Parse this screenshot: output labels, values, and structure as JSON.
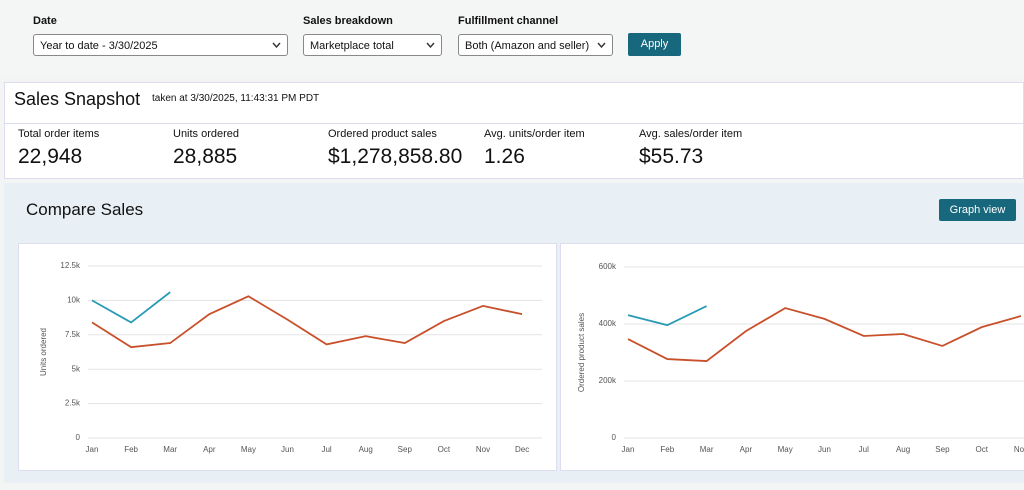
{
  "filters": [
    {
      "label": "Date",
      "value": "Year to date - 3/30/2025"
    },
    {
      "label": "Sales breakdown",
      "value": "Marketplace total"
    },
    {
      "label": "Fulfillment channel",
      "value": "Both (Amazon and seller)"
    }
  ],
  "apply_button": "Apply",
  "snapshot": {
    "title": "Sales Snapshot",
    "timestamp": "taken at 3/30/2025, 11:43:31 PM PDT",
    "metrics": [
      {
        "label": "Total order items",
        "value": "22,948"
      },
      {
        "label": "Units ordered",
        "value": "28,885"
      },
      {
        "label": "Ordered product sales",
        "value": "$1,278,858.80"
      },
      {
        "label": "Avg. units/order item",
        "value": "1.26"
      },
      {
        "label": "Avg. sales/order item",
        "value": "$55.73"
      }
    ]
  },
  "compare_sales": {
    "title": "Compare Sales",
    "view_button": "Graph view",
    "charts": [
      {
        "type": "line",
        "y_label": "Units ordered",
        "categories": [
          "Jan",
          "Feb",
          "Mar",
          "Apr",
          "May",
          "Jun",
          "Jul",
          "Aug",
          "Sep",
          "Oct",
          "Nov",
          "Dec"
        ],
        "series": [
          {
            "color": "#c8502a",
            "values": [
              8400,
              6600,
              6900,
              9000,
              10300,
              8600,
              6800,
              7400,
              6900,
              8500,
              9600,
              9000
            ]
          },
          {
            "color": "#2a9bb5",
            "values": [
              10000,
              8400,
              10600,
              null,
              null,
              null,
              null,
              null,
              null,
              null,
              null,
              null
            ]
          }
        ],
        "ylim": [
          0,
          12500
        ],
        "yticks": [
          0,
          {
            "value": 2500,
            "label": "2.5k"
          },
          {
            "value": 5000,
            "label": "5k"
          },
          {
            "value": 7500,
            "label": "7.5k"
          },
          {
            "value": 10000,
            "label": "10k"
          },
          {
            "value": 12500,
            "label": "12.5k"
          }
        ],
        "grid": true
      },
      {
        "type": "line",
        "y_label": "Ordered product sales",
        "categories": [
          "Jan",
          "Feb",
          "Mar",
          "Apr",
          "May",
          "Jun",
          "Jul",
          "Aug",
          "Sep",
          "Oct",
          "Nov"
        ],
        "series": [
          {
            "color": "#c8502a",
            "values": [
              347000,
              277000,
              270000,
              375000,
              456000,
              418000,
              358000,
              365000,
              323000,
              389000,
              428000
            ]
          },
          {
            "color": "#2a9bb5",
            "values": [
              431000,
              396000,
              463000,
              null,
              null,
              null,
              null,
              null,
              null,
              null,
              null
            ]
          }
        ],
        "ylim": [
          0,
          600000
        ],
        "yticks": [
          0,
          {
            "value": 200000,
            "label": "200k"
          },
          {
            "value": 400000,
            "label": "400k"
          },
          {
            "value": 600000,
            "label": "600k"
          }
        ],
        "grid": true
      }
    ]
  }
}
